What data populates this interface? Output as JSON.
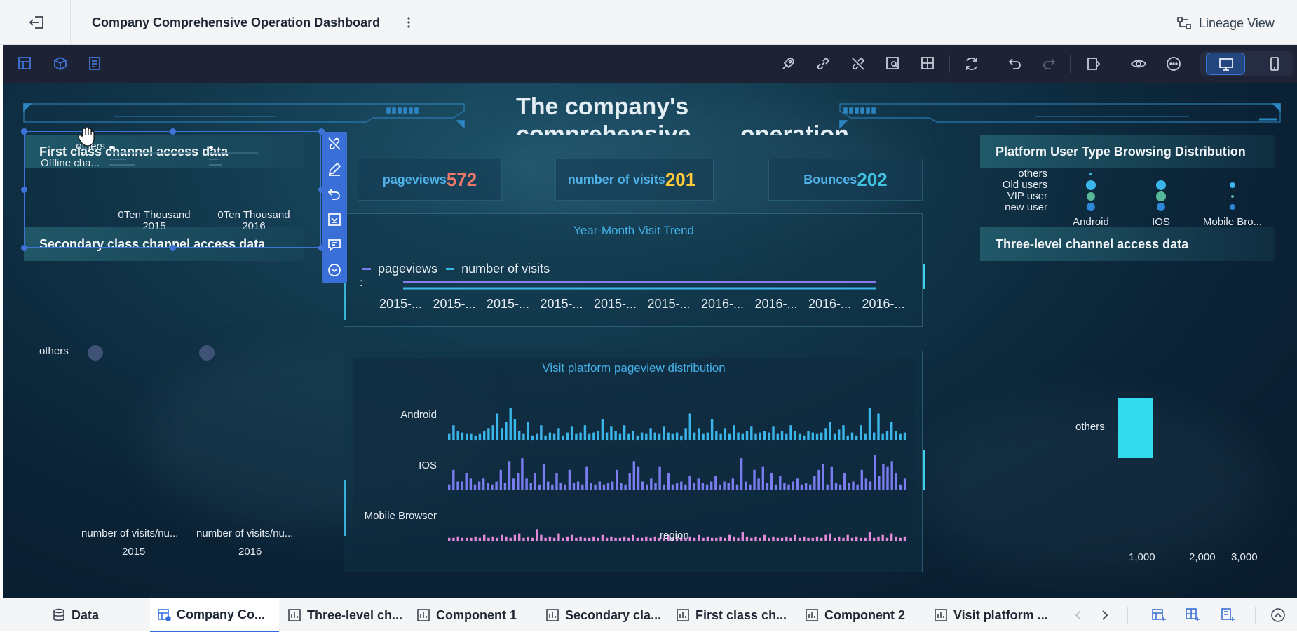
{
  "header": {
    "title": "Company Comprehensive Operation Dashboard",
    "lineage_label": "Lineage View"
  },
  "dashboard": {
    "main_title_line1": "The company's",
    "main_title_line2": "comprehensive",
    "main_title_line3": "operation",
    "kpis": [
      {
        "label": "pageviews",
        "value": "572",
        "color": "#f0786a"
      },
      {
        "label": "number of visits",
        "value": "201",
        "color": "#ffc83a"
      },
      {
        "label": "Bounces",
        "value": "202",
        "color": "#41c3e0"
      }
    ],
    "first_class": {
      "title": "First class channel access data",
      "rows": [
        "others",
        "Offline cha..."
      ],
      "cols": [
        {
          "line1": "0Ten Thousand",
          "line2": "2015"
        },
        {
          "line1": "0Ten Thousand",
          "line2": "2016"
        }
      ]
    },
    "secondary": {
      "title": "Secondary class channel access data",
      "row_label": "others",
      "col1": "number of visits/nu...",
      "col2": "number of visits/nu...",
      "year1": "2015",
      "year2": "2016"
    },
    "trend": {
      "title": "Year-Month Visit Trend",
      "legend": [
        "pageviews",
        "number of visits"
      ],
      "axis_label": ":",
      "ticks": [
        "2015-...",
        "2015-...",
        "2015-...",
        "2015-...",
        "2015-...",
        "2015-...",
        "2016-...",
        "2016-...",
        "2016-...",
        "2016-..."
      ]
    },
    "platform_dist": {
      "title": "Visit platform pageview distribution",
      "rows": [
        "Android",
        "IOS",
        "Mobile Browser"
      ],
      "xlabel": "region"
    },
    "user_type": {
      "title": "Platform User Type Browsing Distribution",
      "rows": [
        "others",
        "Old users",
        "VIP user",
        "new user"
      ],
      "cols": [
        "Android",
        "IOS",
        "Mobile Bro..."
      ]
    },
    "three_level": {
      "title": "Three-level channel access data",
      "bar_label": "others",
      "ticks": [
        "1,000",
        "2,000",
        "3,000"
      ]
    }
  },
  "tabs": [
    {
      "label": "Data"
    },
    {
      "label": "Company Co..."
    },
    {
      "label": "Three-level ch..."
    },
    {
      "label": "Component 1"
    },
    {
      "label": "Secondary cla..."
    },
    {
      "label": "First class ch..."
    },
    {
      "label": "Component 2"
    },
    {
      "label": "Visit platform ..."
    }
  ],
  "colors": {
    "accent": "#2f6fe0",
    "toolbar": "#1d2235",
    "canvas": "#0d2a3e",
    "pageviews_bar": "#3ab6ea",
    "ios_bar": "#7a7cf0",
    "mobile_bar": "#e08ad8",
    "three_level_bar": "#33dced"
  },
  "chart_data": [
    {
      "type": "bar",
      "title": "Visit platform pageview distribution",
      "series": [
        {
          "name": "Android",
          "values": [
            4,
            10,
            6,
            5,
            4,
            4,
            3,
            4,
            6,
            8,
            10,
            18,
            8,
            12,
            22,
            14,
            6,
            4,
            12,
            3,
            4,
            10,
            3,
            5,
            4,
            8,
            3,
            5,
            9,
            4,
            5,
            10,
            4,
            5,
            6,
            14,
            5,
            9,
            6,
            4,
            10,
            4,
            6,
            3,
            5,
            4,
            8,
            5,
            4,
            9,
            5,
            4,
            5,
            3,
            8,
            18,
            5,
            8,
            4,
            5,
            14,
            6,
            4,
            8,
            4,
            10,
            5,
            4,
            6,
            9,
            4,
            5,
            6,
            5,
            9,
            4,
            6,
            4,
            10,
            6,
            4,
            3,
            6,
            5,
            4,
            5,
            8,
            12,
            4,
            7,
            10,
            3,
            5,
            3,
            10,
            4,
            22,
            5,
            18,
            4,
            6,
            12,
            6,
            4,
            5
          ]
        },
        {
          "name": "IOS",
          "values": [
            4,
            14,
            6,
            6,
            12,
            8,
            4,
            6,
            8,
            5,
            4,
            6,
            14,
            5,
            20,
            8,
            12,
            22,
            8,
            5,
            12,
            4,
            18,
            6,
            4,
            12,
            5,
            4,
            14,
            5,
            6,
            4,
            16,
            5,
            4,
            6,
            4,
            5,
            6,
            14,
            5,
            4,
            12,
            20,
            16,
            6,
            4,
            8,
            5,
            16,
            4,
            12,
            4,
            5,
            6,
            4,
            10,
            5,
            8,
            5,
            4,
            6,
            10,
            4,
            6,
            5,
            8,
            4,
            22,
            6,
            4,
            14,
            8,
            16,
            5,
            12,
            4,
            10,
            5,
            4,
            6,
            8,
            4,
            5,
            4,
            10,
            14,
            18,
            4,
            16,
            5,
            4,
            12,
            5,
            6,
            4,
            14,
            8,
            6,
            24,
            10,
            18,
            16,
            20,
            12,
            4,
            8
          ]
        },
        {
          "name": "Mobile Browser",
          "values": [
            2,
            2,
            3,
            2,
            2,
            2,
            3,
            2,
            4,
            2,
            3,
            2,
            4,
            3,
            2,
            4,
            5,
            2,
            3,
            2,
            8,
            4,
            2,
            3,
            2,
            5,
            2,
            3,
            4,
            2,
            3,
            2,
            2,
            3,
            2,
            4,
            2,
            3,
            2,
            2,
            3,
            2,
            4,
            2,
            2,
            3,
            2,
            3,
            2,
            2,
            4,
            2,
            3,
            2,
            2,
            3,
            2,
            4,
            2,
            3,
            2,
            2,
            3,
            2,
            4,
            3,
            2,
            6,
            3,
            2,
            3,
            2,
            4,
            2,
            3,
            2,
            2,
            3,
            2,
            4,
            2,
            3,
            2,
            2,
            3,
            2,
            4,
            5,
            2,
            3,
            2,
            4,
            2,
            3,
            2,
            2,
            6,
            2,
            3,
            4,
            2,
            5,
            3,
            2,
            3
          ]
        }
      ]
    },
    {
      "type": "line",
      "title": "Year-Month Visit Trend",
      "categories": [
        "2015-...",
        "2015-...",
        "2015-...",
        "2015-...",
        "2015-...",
        "2015-...",
        "2016-...",
        "2016-...",
        "2016-...",
        "2016-..."
      ],
      "series": [
        {
          "name": "pageviews",
          "values": [
            572,
            572,
            572,
            572,
            572,
            572,
            572,
            572,
            572,
            572
          ]
        },
        {
          "name": "number of visits",
          "values": [
            201,
            201,
            201,
            201,
            201,
            201,
            201,
            201,
            201,
            201
          ]
        }
      ]
    },
    {
      "type": "bar",
      "title": "Three-level channel access data",
      "categories": [
        "others"
      ],
      "values": [
        400
      ],
      "xlim": [
        0,
        3000
      ]
    }
  ]
}
